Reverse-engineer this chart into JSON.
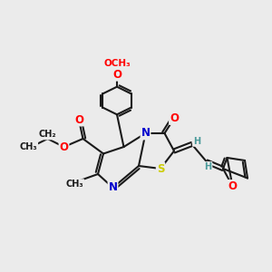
{
  "bg_color": "#ebebeb",
  "bond_color": "#1a1a1a",
  "bond_width": 1.5,
  "atom_colors": {
    "O": "#ff0000",
    "N": "#0000cd",
    "S": "#cccc00",
    "H": "#4a9a9a",
    "C": "#1a1a1a"
  },
  "font_size_atom": 8.5,
  "font_size_small": 7.0,
  "figsize": [
    3.0,
    3.0
  ],
  "dpi": 100,
  "xlim": [
    0,
    10
  ],
  "ylim": [
    0,
    10
  ]
}
